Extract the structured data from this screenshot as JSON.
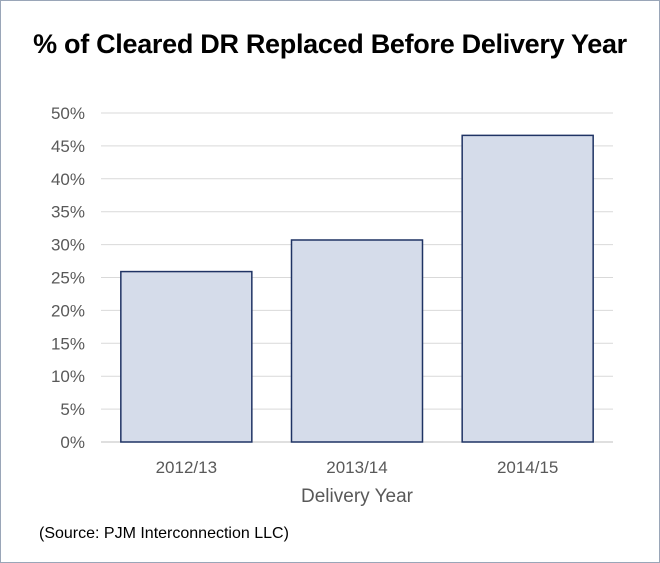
{
  "chart_data": {
    "type": "bar",
    "title": "% of Cleared DR Replaced Before Delivery Year",
    "categories": [
      "2012/13",
      "2013/14",
      "2014/15"
    ],
    "values": [
      25.9,
      30.7,
      46.6
    ],
    "xlabel": "Delivery Year",
    "ylabel": "",
    "ylim": [
      0,
      50
    ],
    "yticks": [
      "0%",
      "5%",
      "10%",
      "15%",
      "20%",
      "25%",
      "30%",
      "35%",
      "40%",
      "45%",
      "50%"
    ],
    "grid": true,
    "bar_fill": "#d5dcea",
    "bar_edge": "#1f3364",
    "grid_color": "#d9d9d9"
  },
  "footer": {
    "source": "(Source: PJM Interconnection LLC)"
  }
}
